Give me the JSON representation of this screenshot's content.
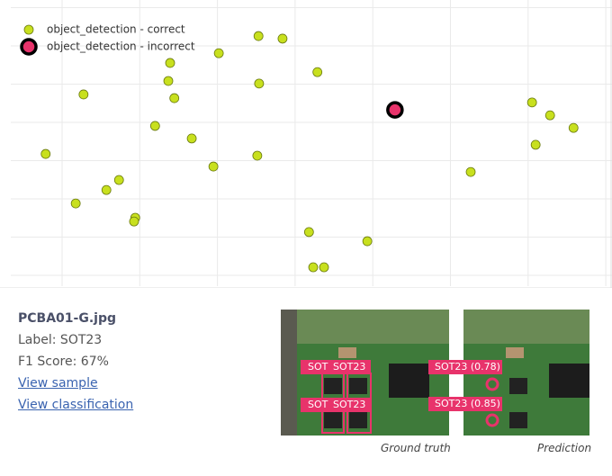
{
  "chart_data": {
    "type": "scatter",
    "xlim": [
      0,
      100
    ],
    "ylim": [
      0,
      100
    ],
    "series": [
      {
        "name": "object_detection - correct",
        "color": "#c8e01e",
        "x": [
          41.2,
          45.2,
          34.6,
          26.5,
          51.0,
          26.2,
          41.3,
          12.1,
          27.2,
          24.0,
          30.1,
          5.8,
          41.0,
          33.7,
          18.0,
          15.9,
          10.8,
          20.7,
          20.5,
          49.6,
          59.3,
          50.3,
          52.1,
          86.7,
          89.7,
          93.6,
          87.3,
          76.5
        ],
        "values": [
          87.4,
          86.5,
          81.4,
          78.0,
          74.8,
          71.7,
          70.8,
          67.0,
          65.7,
          56.0,
          51.6,
          46.2,
          45.6,
          41.8,
          37.1,
          33.6,
          28.9,
          23.9,
          22.6,
          18.9,
          15.7,
          6.6,
          6.6,
          64.2,
          59.7,
          55.3,
          49.4,
          39.9
        ]
      },
      {
        "name": "object_detection - incorrect",
        "color": "#e8336b",
        "x": [
          63.9
        ],
        "values": [
          61.6
        ]
      }
    ]
  },
  "panel": {
    "filename": "PCBA01-G.jpg",
    "label": "Label: SOT23",
    "f1": "F1 Score: 67%",
    "link_sample": "View sample",
    "link_classification": "View classification",
    "ground_truth": {
      "caption": "Ground truth",
      "boxes": [
        "SOT",
        "SOT23",
        "SOT",
        "SOT23"
      ]
    },
    "prediction": {
      "caption": "Prediction",
      "boxes": [
        "SOT23 (0.78)",
        "SOT23 (0.85)"
      ]
    }
  }
}
